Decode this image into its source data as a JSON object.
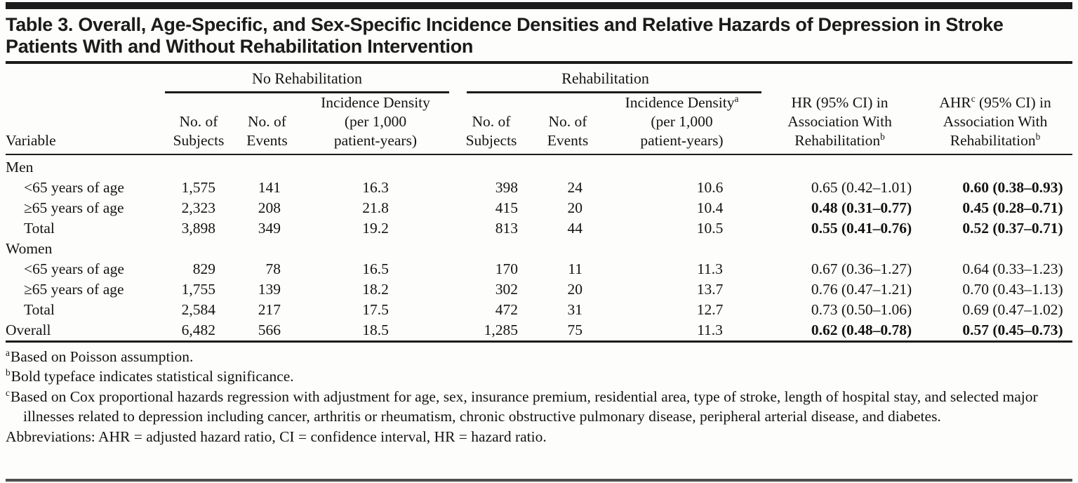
{
  "title": "Table 3. Overall, Age-Specific, and Sex-Specific Incidence Densities and Relative Hazards of Depression in Stroke Patients With and Without Rehabilitation Intervention",
  "table": {
    "spanners": {
      "no_rehab": "No Rehabilitation",
      "rehab": "Rehabilitation"
    },
    "columns": {
      "variable": "Variable",
      "subjects_line1": "No. of",
      "subjects_line2": "Subjects",
      "events_line1": "No. of",
      "events_line2": "Events",
      "incidence_line1": "Incidence Density",
      "incidence_line2": "(per 1,000",
      "incidence_line3": "patient-years)",
      "incidence_sup": "a",
      "hr_line1": "HR (95% CI) in",
      "hr_line2": "Association With",
      "hr_line3": "Rehabilitation",
      "hr_sup": "b",
      "ahr_abbr": "AHR",
      "ahr_sup": "c",
      "ahr_line1_rest": " (95% CI) in",
      "ahr_line2": "Association With",
      "ahr_line3": "Rehabilitation",
      "ahr_sup2": "b"
    },
    "rows": [
      {
        "label": "Men",
        "indent": false,
        "cells": [],
        "bold": []
      },
      {
        "label": "<65 years of age",
        "indent": true,
        "cells": [
          "1,575",
          "141",
          "16.3",
          "398",
          "24",
          "10.6",
          "0.65 (0.42–1.01)",
          "0.60 (0.38–0.93)"
        ],
        "bold": [
          false,
          false,
          false,
          false,
          false,
          false,
          false,
          true
        ]
      },
      {
        "label": "≥65 years of age",
        "indent": true,
        "cells": [
          "2,323",
          "208",
          "21.8",
          "415",
          "20",
          "10.4",
          "0.48 (0.31–0.77)",
          "0.45 (0.28–0.71)"
        ],
        "bold": [
          false,
          false,
          false,
          false,
          false,
          false,
          true,
          true
        ]
      },
      {
        "label": "Total",
        "indent": true,
        "cells": [
          "3,898",
          "349",
          "19.2",
          "813",
          "44",
          "10.5",
          "0.55 (0.41–0.76)",
          "0.52 (0.37–0.71)"
        ],
        "bold": [
          false,
          false,
          false,
          false,
          false,
          false,
          true,
          true
        ]
      },
      {
        "label": "Women",
        "indent": false,
        "cells": [],
        "bold": []
      },
      {
        "label": "<65 years of age",
        "indent": true,
        "cells": [
          "829",
          "78",
          "16.5",
          "170",
          "11",
          "11.3",
          "0.67 (0.36–1.27)",
          "0.64 (0.33–1.23)"
        ],
        "bold": [
          false,
          false,
          false,
          false,
          false,
          false,
          false,
          false
        ]
      },
      {
        "label": "≥65 years of age",
        "indent": true,
        "cells": [
          "1,755",
          "139",
          "18.2",
          "302",
          "20",
          "13.7",
          "0.76 (0.47–1.21)",
          "0.70 (0.43–1.13)"
        ],
        "bold": [
          false,
          false,
          false,
          false,
          false,
          false,
          false,
          false
        ]
      },
      {
        "label": "Total",
        "indent": true,
        "cells": [
          "2,584",
          "217",
          "17.5",
          "472",
          "31",
          "12.7",
          "0.73 (0.50–1.06)",
          "0.69 (0.47–1.02)"
        ],
        "bold": [
          false,
          false,
          false,
          false,
          false,
          false,
          false,
          false
        ]
      },
      {
        "label": "Overall",
        "indent": false,
        "cells": [
          "6,482",
          "566",
          "18.5",
          "1,285",
          "75",
          "11.3",
          "0.62 (0.48–0.78)",
          "0.57 (0.45–0.73)"
        ],
        "bold": [
          false,
          false,
          false,
          false,
          false,
          false,
          true,
          true
        ]
      }
    ]
  },
  "footnotes": [
    {
      "marker": "a",
      "text": "Based on Poisson assumption."
    },
    {
      "marker": "b",
      "text": "Bold typeface indicates statistical significance."
    },
    {
      "marker": "c",
      "text": "Based on Cox proportional hazards regression with adjustment for age, sex, insurance premium, residential area, type of stroke, length of hospital stay, and selected major illnesses related to depression including cancer, arthritis or rheumatism, chronic obstructive pulmonary disease, peripheral arterial disease, and diabetes."
    }
  ],
  "abbreviations": "Abbreviations: AHR = adjusted hazard ratio, CI = confidence interval, HR = hazard ratio."
}
